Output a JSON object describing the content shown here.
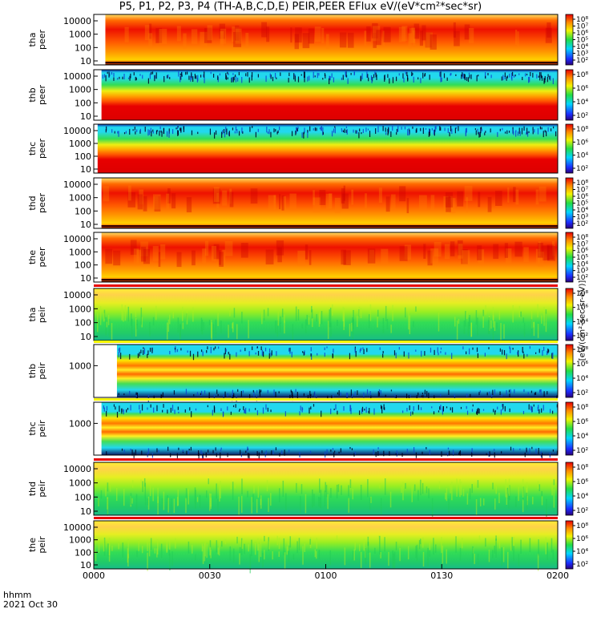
{
  "title": "P5, P1, P2, P3, P4 (TH-A,B,C,D,E) PEIR,PEER EFlux eV/(eV*cm²*sec*sr)",
  "colorbar_units": "[eV/(cm²-sec-sr-eV)]",
  "footer": {
    "hhmm": "hhmm",
    "date": "2021 Oct 30"
  },
  "chart_data": {
    "type": "heatmap",
    "x_ticks": [
      "0000",
      "0030",
      "0100",
      "0130",
      "0200"
    ],
    "y_scale": "log",
    "panels": [
      {
        "label": [
          "tha",
          "peer"
        ],
        "y_ticks": [
          "10000",
          "1000",
          "100",
          "10"
        ],
        "colorbar_ticks": [
          "10⁸",
          "10⁷",
          "10⁶",
          "10⁵",
          "10⁴",
          "10³",
          "10²"
        ],
        "data_start": "0003",
        "style": "peer-hot"
      },
      {
        "label": [
          "thb",
          "peer"
        ],
        "y_ticks": [
          "10000",
          "1000",
          "100",
          "10"
        ],
        "colorbar_ticks": [
          "10⁸",
          "10⁶",
          "10⁴",
          "10²"
        ],
        "data_start": "0002",
        "style": "peer-bands"
      },
      {
        "label": [
          "thc",
          "peer"
        ],
        "y_ticks": [
          "10000",
          "1000",
          "100",
          "10"
        ],
        "colorbar_ticks": [
          "10⁸",
          "10⁶",
          "10⁴",
          "10²"
        ],
        "data_start": "0001",
        "style": "peer-bands"
      },
      {
        "label": [
          "thd",
          "peer"
        ],
        "y_ticks": [
          "10000",
          "1000",
          "100",
          "10"
        ],
        "colorbar_ticks": [
          "10⁸",
          "10⁷",
          "10⁶",
          "10⁵",
          "10⁴",
          "10³",
          "10²"
        ],
        "data_start": "0002",
        "style": "peer-hot"
      },
      {
        "label": [
          "the",
          "peer"
        ],
        "y_ticks": [
          "10000",
          "1000",
          "100",
          "10"
        ],
        "colorbar_ticks": [
          "10⁸",
          "10⁷",
          "10⁶",
          "10⁵",
          "10⁴",
          "10³",
          "10²"
        ],
        "data_start": "0002",
        "style": "peer-hot"
      },
      {
        "label": [
          "tha",
          "peir"
        ],
        "y_ticks": [
          "10000",
          "1000",
          "100",
          "10"
        ],
        "colorbar_ticks": [
          "10⁸",
          "10⁶",
          "10⁴",
          "10²"
        ],
        "data_start": "0000",
        "style": "peir-green"
      },
      {
        "label": [
          "thb",
          "peir"
        ],
        "y_ticks": [
          "1000"
        ],
        "colorbar_ticks": [
          "10⁸",
          "10⁶",
          "10⁴",
          "10²"
        ],
        "data_start": "0006",
        "style": "peir-bands"
      },
      {
        "label": [
          "thc",
          "peir"
        ],
        "y_ticks": [
          "1000"
        ],
        "colorbar_ticks": [
          "10⁸",
          "10⁶",
          "10⁴",
          "10²"
        ],
        "data_start": "0002",
        "style": "peir-bands"
      },
      {
        "label": [
          "thd",
          "peir"
        ],
        "y_ticks": [
          "10000",
          "1000",
          "100",
          "10"
        ],
        "colorbar_ticks": [
          "10⁸",
          "10⁶",
          "10⁴",
          "10²"
        ],
        "data_start": "0000",
        "style": "peir-green"
      },
      {
        "label": [
          "the",
          "peir"
        ],
        "y_ticks": [
          "10000",
          "1000",
          "100",
          "10"
        ],
        "colorbar_ticks": [
          "10⁸",
          "10⁶",
          "10⁴",
          "10²"
        ],
        "data_start": "0000",
        "style": "peir-green"
      }
    ]
  }
}
